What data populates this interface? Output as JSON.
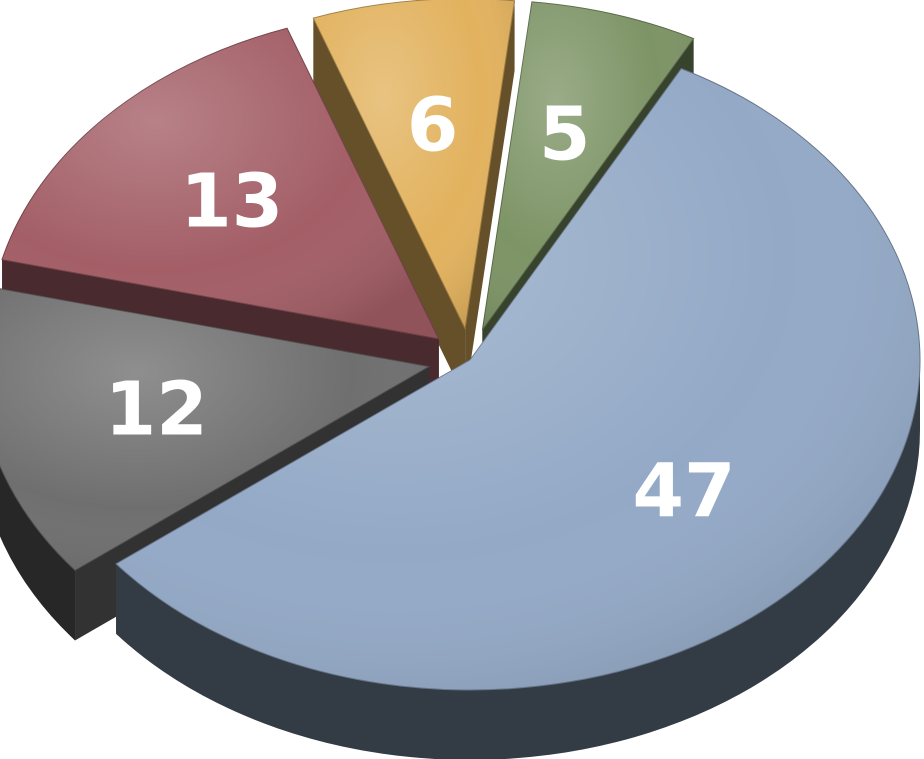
{
  "chart_data": {
    "type": "pie",
    "variant": "3d-exploded",
    "title": "",
    "slices": [
      {
        "label": "47",
        "value": 47,
        "color": "#93a9c6"
      },
      {
        "label": "12",
        "value": 12,
        "color": "#6f6f6f"
      },
      {
        "label": "13",
        "value": 13,
        "color": "#a35e66"
      },
      {
        "label": "6",
        "value": 6,
        "color": "#e2b25e"
      },
      {
        "label": "5",
        "value": 5,
        "color": "#7d9466"
      }
    ],
    "legend": "none",
    "data_labels": "on slices"
  }
}
